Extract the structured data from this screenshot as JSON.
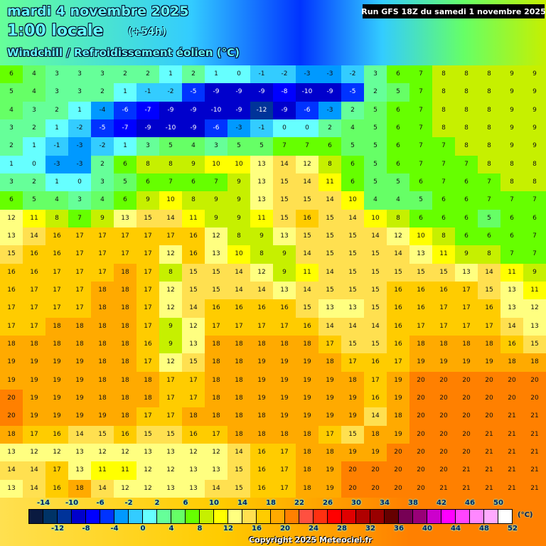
{
  "header": {
    "date": "mardi 4 novembre 2025",
    "time": "1:00 locale",
    "lead": "(+54h)",
    "parameter": "Windchill / Refroidissement éolien (°C)",
    "run": "Run GFS 18Z du samedi 1 novembre 2025"
  },
  "legend": {
    "unit": "(°C)",
    "top_labels": [
      "-14",
      "-10",
      "-6",
      "-2",
      "2",
      "6",
      "10",
      "14",
      "18",
      "22",
      "26",
      "30",
      "34",
      "38",
      "42",
      "46",
      "50"
    ],
    "bottom_labels": [
      "-12",
      "-8",
      "-4",
      "0",
      "4",
      "8",
      "12",
      "16",
      "20",
      "24",
      "28",
      "32",
      "36",
      "40",
      "44",
      "48",
      "52"
    ],
    "colors": [
      "#0a1a40",
      "#003366",
      "#003399",
      "#0000cc",
      "#0000ff",
      "#0033ff",
      "#0099ff",
      "#33ccff",
      "#66ffff",
      "#66ff99",
      "#66ff66",
      "#66ff00",
      "#c6f000",
      "#ffff00",
      "#ffff80",
      "#ffe050",
      "#ffcc00",
      "#ffaa00",
      "#ff8000",
      "#ff5040",
      "#ff3010",
      "#ff0000",
      "#e00000",
      "#b00000",
      "#990000",
      "#660000",
      "#770055",
      "#990077",
      "#cc00cc",
      "#ff00ff",
      "#ff44ff",
      "#ff88ff",
      "#ffaaff",
      "#ffffff"
    ],
    "min": -16,
    "step": 2
  },
  "copyright": "Copyright 2025 Meteociel.fr",
  "grid_values": [
    [
      6,
      4,
      3,
      3,
      3,
      2,
      2,
      1,
      2,
      1,
      0,
      -1,
      -2,
      -3,
      -3,
      -2,
      3,
      6,
      7,
      8,
      8,
      8,
      9,
      9
    ],
    [
      5,
      4,
      3,
      3,
      2,
      1,
      -1,
      -2,
      -5,
      -9,
      -9,
      -9,
      -8,
      -10,
      -9,
      -5,
      2,
      5,
      7,
      8,
      8,
      8,
      9,
      9
    ],
    [
      4,
      3,
      2,
      1,
      -4,
      -6,
      -7,
      -9,
      -9,
      -10,
      -9,
      -12,
      -9,
      -6,
      -3,
      2,
      5,
      6,
      7,
      8,
      8,
      8,
      9,
      9
    ],
    [
      3,
      2,
      1,
      -2,
      -5,
      -7,
      -9,
      -10,
      -9,
      -6,
      -3,
      -1,
      0,
      0,
      2,
      4,
      5,
      6,
      7,
      8,
      8,
      8,
      9,
      9
    ],
    [
      2,
      1,
      -1,
      -3,
      -2,
      1,
      3,
      5,
      4,
      3,
      5,
      5,
      7,
      7,
      6,
      5,
      5,
      6,
      7,
      7,
      8,
      8,
      9,
      9
    ],
    [
      1,
      0,
      -3,
      -3,
      2,
      6,
      8,
      8,
      9,
      10,
      10,
      13,
      14,
      12,
      8,
      6,
      5,
      6,
      7,
      7,
      7,
      8,
      8,
      8
    ],
    [
      3,
      2,
      1,
      0,
      3,
      5,
      6,
      7,
      6,
      7,
      9,
      13,
      15,
      14,
      11,
      6,
      5,
      5,
      6,
      7,
      6,
      7,
      8,
      8
    ],
    [
      6,
      5,
      4,
      3,
      4,
      6,
      9,
      10,
      8,
      9,
      9,
      13,
      15,
      15,
      14,
      10,
      4,
      4,
      5,
      6,
      6,
      7,
      7,
      7
    ],
    [
      12,
      11,
      8,
      7,
      9,
      13,
      15,
      14,
      11,
      9,
      9,
      11,
      15,
      16,
      15,
      14,
      10,
      8,
      6,
      6,
      6,
      5,
      6,
      6
    ],
    [
      13,
      14,
      16,
      17,
      17,
      17,
      17,
      17,
      16,
      12,
      8,
      9,
      13,
      15,
      15,
      15,
      14,
      12,
      10,
      8,
      6,
      6,
      6,
      7
    ],
    [
      15,
      16,
      16,
      17,
      17,
      17,
      17,
      12,
      16,
      13,
      10,
      8,
      9,
      14,
      15,
      15,
      15,
      14,
      13,
      11,
      9,
      8,
      7,
      7
    ],
    [
      16,
      16,
      17,
      17,
      17,
      18,
      17,
      8,
      15,
      15,
      14,
      12,
      9,
      11,
      14,
      15,
      15,
      15,
      15,
      15,
      13,
      14,
      11,
      9
    ],
    [
      16,
      17,
      17,
      17,
      18,
      18,
      17,
      12,
      15,
      15,
      14,
      14,
      13,
      14,
      15,
      15,
      15,
      16,
      16,
      16,
      17,
      15,
      13,
      11
    ],
    [
      17,
      17,
      17,
      17,
      18,
      18,
      17,
      12,
      14,
      16,
      16,
      16,
      16,
      15,
      13,
      13,
      15,
      16,
      16,
      17,
      17,
      16,
      13,
      12
    ],
    [
      17,
      17,
      18,
      18,
      18,
      18,
      17,
      9,
      12,
      17,
      17,
      17,
      17,
      16,
      14,
      14,
      14,
      16,
      17,
      17,
      17,
      17,
      14,
      13
    ],
    [
      18,
      18,
      18,
      18,
      18,
      18,
      16,
      9,
      13,
      18,
      18,
      18,
      18,
      18,
      17,
      15,
      15,
      16,
      18,
      18,
      18,
      18,
      16,
      15
    ],
    [
      19,
      19,
      19,
      19,
      18,
      18,
      17,
      12,
      15,
      18,
      18,
      19,
      19,
      19,
      18,
      17,
      16,
      17,
      19,
      19,
      19,
      19,
      18,
      18
    ],
    [
      19,
      19,
      19,
      19,
      18,
      18,
      18,
      17,
      17,
      18,
      18,
      19,
      19,
      19,
      19,
      18,
      17,
      19,
      20,
      20,
      20,
      20,
      20,
      20
    ],
    [
      20,
      19,
      19,
      19,
      18,
      18,
      18,
      17,
      17,
      18,
      18,
      19,
      19,
      19,
      19,
      19,
      16,
      19,
      20,
      20,
      20,
      20,
      20,
      20
    ],
    [
      20,
      19,
      19,
      19,
      19,
      18,
      17,
      17,
      18,
      18,
      18,
      18,
      19,
      19,
      19,
      19,
      14,
      18,
      20,
      20,
      20,
      20,
      21,
      21
    ],
    [
      18,
      17,
      16,
      14,
      15,
      16,
      15,
      15,
      16,
      17,
      18,
      18,
      18,
      18,
      17,
      15,
      18,
      19,
      20,
      20,
      20,
      21,
      21,
      21
    ],
    [
      13,
      12,
      12,
      13,
      12,
      12,
      13,
      13,
      12,
      12,
      14,
      16,
      17,
      18,
      18,
      19,
      19,
      20,
      20,
      20,
      20,
      21,
      21,
      21
    ],
    [
      14,
      14,
      17,
      13,
      11,
      11,
      12,
      12,
      13,
      13,
      15,
      16,
      17,
      18,
      19,
      20,
      20,
      20,
      20,
      20,
      21,
      21,
      21,
      21
    ],
    [
      13,
      14,
      16,
      18,
      14,
      12,
      12,
      13,
      13,
      14,
      15,
      16,
      17,
      18,
      19,
      20,
      20,
      20,
      20,
      21,
      21,
      21,
      21,
      21
    ]
  ]
}
